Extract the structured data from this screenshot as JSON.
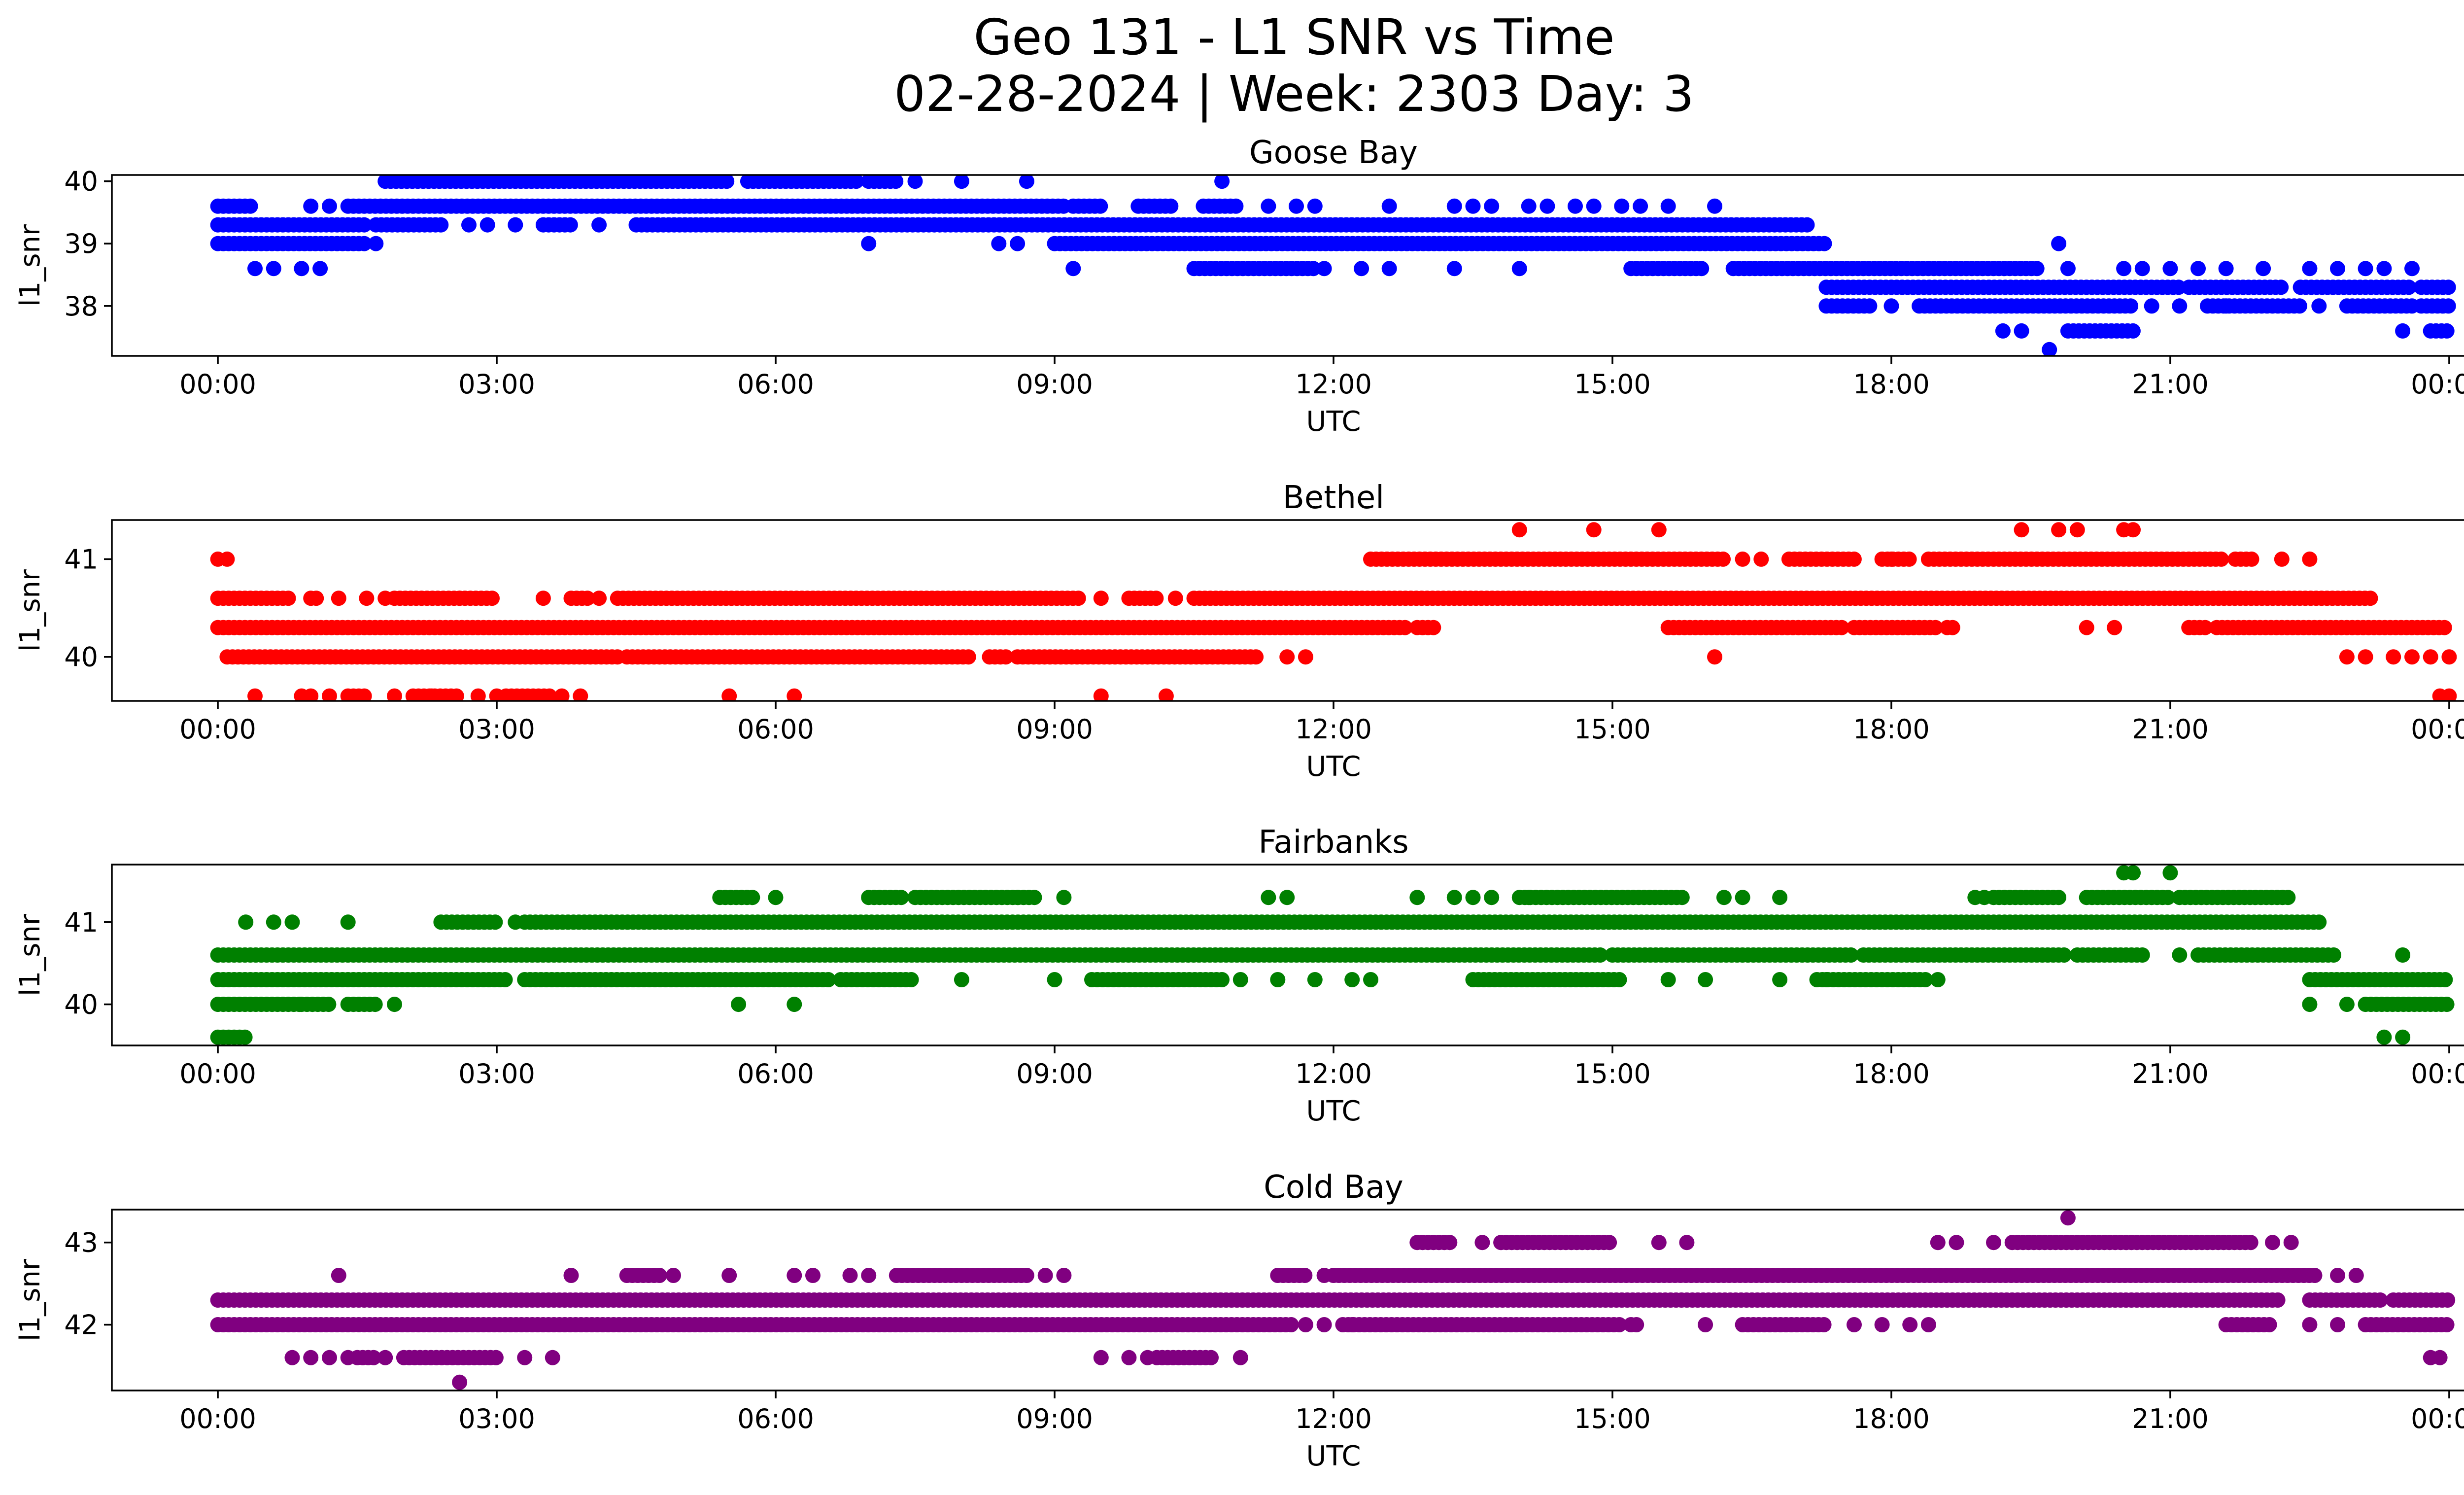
{
  "figure": {
    "title_line1": "Geo 131 - L1 SNR vs Time",
    "title_line2": "02-28-2024 | Week: 2303 Day: 3"
  },
  "chart_data": [
    {
      "type": "scatter",
      "title": "Goose Bay",
      "xlabel": "UTC",
      "ylabel": "l1_snr",
      "color": "#0000ff",
      "xlim_hours": [
        -1.14,
        25.14
      ],
      "ylim": [
        37.2,
        40.1
      ],
      "xticks": [
        "00:00",
        "03:00",
        "06:00",
        "09:00",
        "12:00",
        "15:00",
        "18:00",
        "21:00",
        "00:00"
      ],
      "yticks": [
        38,
        39,
        40
      ],
      "series": [
        {
          "values": [
            {
              "level": 40.0,
              "segments": [
                [
                  1.8,
                  5.5
                ],
                [
                  5.7,
                  6.9
                ],
                [
                  7.0,
                  7.3
                ]
              ],
              "singles": [
                7.5,
                8.0,
                8.7,
                10.8
              ]
            },
            {
              "level": 39.6,
              "segments": [
                [
                  0.0,
                  0.4
                ],
                [
                  1.4,
                  9.1
                ],
                [
                  9.2,
                  9.5
                ],
                [
                  9.9,
                  10.3
                ],
                [
                  10.6,
                  11.0
                ]
              ],
              "singles": [
                1.0,
                1.2,
                11.3,
                11.6,
                11.8,
                12.6,
                13.3,
                13.5,
                13.7,
                14.1,
                14.3,
                14.6,
                14.8,
                15.1,
                15.3,
                15.6,
                16.1
              ]
            },
            {
              "level": 39.3,
              "segments": [
                [
                  0.0,
                  1.6
                ],
                [
                  1.7,
                  2.4
                ],
                [
                  3.5,
                  3.8
                ],
                [
                  4.5,
                  17.1
                ]
              ],
              "singles": [
                2.7,
                2.9,
                3.2,
                4.1
              ]
            },
            {
              "level": 39.0,
              "segments": [
                [
                  0.0,
                  1.6
                ],
                [
                  9.0,
                  17.3
                ]
              ],
              "singles": [
                1.7,
                7.0,
                8.4,
                8.6
              ]
            },
            {
              "level": 38.6,
              "segments": [
                [
                  10.5,
                  11.8
                ],
                [
                  15.2,
                  16.0
                ],
                [
                  16.3,
                  19.6
                ]
              ],
              "singles": [
                0.4,
                0.6,
                0.9,
                1.1,
                9.2,
                11.9,
                12.3,
                12.6,
                13.3,
                14.0,
                19.9,
                20.5,
                20.7,
                21.0,
                21.3,
                21.6,
                22.0,
                22.5,
                22.8,
                23.1,
                23.3,
                23.6
              ]
            },
            {
              "level": 38.3,
              "segments": [
                [
                  17.3,
                  21.1
                ],
                [
                  21.2,
                  22.2
                ],
                [
                  22.4,
                  23.6
                ],
                [
                  23.7,
                  24.0
                ]
              ],
              "singles": []
            },
            {
              "level": 38.0,
              "segments": [
                [
                  17.3,
                  17.8
                ],
                [
                  18.3,
                  20.6
                ],
                [
                  21.4,
                  22.4
                ],
                [
                  22.9,
                  23.6
                ],
                [
                  23.7,
                  24.0
                ]
              ],
              "singles": [
                18.0,
                20.8,
                21.1,
                21.6,
                22.6
              ]
            },
            {
              "level": 37.6,
              "segments": [
                [
                  19.9,
                  20.6
                ],
                [
                  23.8,
                  24.0
                ]
              ],
              "singles": [
                19.2,
                19.4,
                23.5
              ]
            },
            {
              "level": 37.3,
              "segments": [],
              "singles": [
                19.7
              ]
            },
            {
              "level": 39.0,
              "segments": [],
              "singles": [
                19.8
              ]
            }
          ]
        }
      ]
    },
    {
      "type": "scatter",
      "title": "Bethel",
      "xlabel": "UTC",
      "ylabel": "l1_snr",
      "color": "#ff0000",
      "xlim_hours": [
        -1.14,
        25.14
      ],
      "ylim": [
        39.55,
        41.4
      ],
      "xticks": [
        "00:00",
        "03:00",
        "06:00",
        "09:00",
        "12:00",
        "15:00",
        "18:00",
        "21:00",
        "00:00"
      ],
      "yticks": [
        40,
        41
      ],
      "series": [
        {
          "values": [
            {
              "level": 41.3,
              "segments": [],
              "singles": [
                14.0,
                14.8,
                15.5,
                19.4,
                19.8,
                20.0,
                20.5,
                20.6
              ]
            },
            {
              "level": 41.0,
              "segments": [
                [
                  12.4,
                  16.2
                ],
                [
                  16.9,
                  17.6
                ],
                [
                  17.9,
                  18.2
                ],
                [
                  18.4,
                  21.6
                ],
                [
                  21.7,
                  21.9
                ]
              ],
              "singles": [
                0.0,
                0.1,
                16.4,
                16.6,
                18.0,
                22.2,
                22.5
              ]
            },
            {
              "level": 40.6,
              "segments": [
                [
                  0.0,
                  0.8
                ],
                [
                  1.0,
                  1.1
                ],
                [
                  1.9,
                  3.0
                ],
                [
                  3.8,
                  4.0
                ],
                [
                  4.3,
                  9.3
                ],
                [
                  9.8,
                  10.1
                ],
                [
                  10.5,
                  23.2
                ]
              ],
              "singles": [
                1.3,
                1.6,
                1.8,
                2.6,
                3.5,
                4.1,
                9.5,
                10.3
              ]
            },
            {
              "level": 40.3,
              "segments": [
                [
                  0.0,
                  12.8
                ],
                [
                  12.9,
                  13.1
                ],
                [
                  15.6,
                  17.5
                ],
                [
                  17.6,
                  18.5
                ],
                [
                  18.6,
                  18.7
                ],
                [
                  21.2,
                  21.4
                ],
                [
                  21.5,
                  24.0
                ]
              ],
              "singles": [
                20.1,
                20.4
              ]
            },
            {
              "level": 40.0,
              "segments": [
                [
                  0.1,
                  4.3
                ],
                [
                  4.4,
                  8.1
                ],
                [
                  8.3,
                  8.5
                ],
                [
                  8.6,
                  11.2
                ]
              ],
              "singles": [
                11.5,
                11.7,
                16.1,
                22.9,
                23.1,
                23.4,
                23.6,
                23.8,
                24.0
              ]
            },
            {
              "level": 39.6,
              "segments": [
                [
                  1.4,
                  1.6
                ],
                [
                  2.1,
                  2.6
                ],
                [
                  3.1,
                  3.6
                ]
              ],
              "singles": [
                0.4,
                0.9,
                1.0,
                1.2,
                1.9,
                2.3,
                2.8,
                3.0,
                3.7,
                3.9,
                5.5,
                6.2,
                9.5,
                10.2,
                23.9,
                24.0
              ]
            }
          ]
        }
      ]
    },
    {
      "type": "scatter",
      "title": "Fairbanks",
      "xlabel": "UTC",
      "ylabel": "l1_snr",
      "color": "#008000",
      "xlim_hours": [
        -1.14,
        25.14
      ],
      "ylim": [
        39.5,
        41.7
      ],
      "xticks": [
        "00:00",
        "03:00",
        "06:00",
        "09:00",
        "12:00",
        "15:00",
        "18:00",
        "21:00",
        "00:00"
      ],
      "yticks": [
        40,
        41
      ],
      "series": [
        {
          "values": [
            {
              "level": 41.6,
              "segments": [],
              "singles": [
                20.5,
                20.6,
                21.0
              ]
            },
            {
              "level": 41.3,
              "segments": [
                [
                  5.4,
                  5.8
                ],
                [
                  7.0,
                  7.4
                ],
                [
                  7.5,
                  8.8
                ],
                [
                  14.0,
                  15.8
                ],
                [
                  19.1,
                  19.8
                ],
                [
                  20.1,
                  21.0
                ],
                [
                  21.1,
                  22.3
                ]
              ],
              "singles": [
                6.0,
                8.6,
                9.1,
                11.3,
                11.5,
                12.9,
                13.3,
                13.5,
                13.7,
                14.1,
                16.2,
                16.4,
                16.8,
                18.9,
                19.0
              ]
            },
            {
              "level": 41.0,
              "segments": [
                [
                  2.4,
                  3.0
                ],
                [
                  3.3,
                  22.6
                ]
              ],
              "singles": [
                0.3,
                0.6,
                0.8,
                1.4,
                3.2
              ]
            },
            {
              "level": 40.6,
              "segments": [
                [
                  0.0,
                  14.9
                ],
                [
                  15.0,
                  17.6
                ],
                [
                  17.7,
                  19.9
                ],
                [
                  20.0,
                  20.7
                ],
                [
                  21.3,
                  22.8
                ]
              ],
              "singles": [
                21.1,
                23.5
              ]
            },
            {
              "level": 40.3,
              "segments": [
                [
                  0.0,
                  3.1
                ],
                [
                  3.3,
                  6.6
                ],
                [
                  6.7,
                  7.5
                ],
                [
                  9.4,
                  10.8
                ],
                [
                  13.5,
                  15.1
                ],
                [
                  17.2,
                  18.4
                ],
                [
                  22.5,
                  24.0
                ]
              ],
              "singles": [
                8.0,
                9.0,
                11.0,
                11.4,
                11.8,
                12.2,
                12.4,
                15.6,
                16.0,
                16.8,
                17.3,
                18.5
              ]
            },
            {
              "level": 40.0,
              "segments": [
                [
                  0.0,
                  0.9
                ],
                [
                  0.9,
                  1.2
                ],
                [
                  1.4,
                  1.7
                ],
                [
                  23.1,
                  24.0
                ]
              ],
              "singles": [
                5.6,
                6.2,
                1.9,
                22.5,
                22.9
              ]
            },
            {
              "level": 39.6,
              "segments": [
                [
                  0.0,
                  0.3
                ]
              ],
              "singles": [
                23.3,
                23.5
              ]
            }
          ]
        }
      ]
    },
    {
      "type": "scatter",
      "title": "Cold Bay",
      "xlabel": "UTC",
      "ylabel": "l1_snr",
      "color": "#800080",
      "xlim_hours": [
        -1.14,
        25.14
      ],
      "ylim": [
        41.2,
        43.4
      ],
      "xticks": [
        "00:00",
        "03:00",
        "06:00",
        "09:00",
        "12:00",
        "15:00",
        "18:00",
        "21:00",
        "00:00"
      ],
      "yticks": [
        42,
        43
      ],
      "series": [
        {
          "values": [
            {
              "level": 43.3,
              "segments": [],
              "singles": [
                19.9
              ]
            },
            {
              "level": 43.0,
              "segments": [
                [
                  12.9,
                  13.3
                ],
                [
                  13.8,
                  15.0
                ],
                [
                  19.3,
                  21.9
                ]
              ],
              "singles": [
                13.6,
                15.5,
                15.8,
                18.5,
                18.7,
                19.1,
                22.1,
                22.3
              ]
            },
            {
              "level": 42.6,
              "segments": [
                [
                  4.4,
                  4.8
                ],
                [
                  7.3,
                  8.7
                ],
                [
                  11.4,
                  11.7
                ],
                [
                  12.0,
                  22.6
                ]
              ],
              "singles": [
                1.3,
                3.8,
                4.9,
                5.5,
                6.2,
                6.4,
                6.8,
                7.0,
                8.9,
                9.1,
                11.9,
                22.8,
                23.0
              ]
            },
            {
              "level": 42.3,
              "segments": [
                [
                  0.0,
                  22.2
                ],
                [
                  22.5,
                  23.3
                ],
                [
                  23.4,
                  24.0
                ]
              ],
              "singles": []
            },
            {
              "level": 42.0,
              "segments": [
                [
                  0.0,
                  11.6
                ],
                [
                  12.1,
                  15.1
                ],
                [
                  15.2,
                  15.3
                ],
                [
                  16.4,
                  17.3
                ],
                [
                  21.6,
                  22.1
                ],
                [
                  23.1,
                  24.0
                ]
              ],
              "singles": [
                11.7,
                11.9,
                12.2,
                16.0,
                17.6,
                17.9,
                18.2,
                18.4,
                22.5,
                22.8
              ]
            },
            {
              "level": 41.6,
              "segments": [
                [
                  1.5,
                  1.7
                ],
                [
                  2.0,
                  3.0
                ],
                [
                  10.1,
                  10.7
                ]
              ],
              "singles": [
                0.8,
                1.0,
                1.2,
                1.4,
                1.8,
                3.3,
                3.6,
                9.5,
                9.8,
                10.0,
                11.0,
                23.8,
                23.9
              ]
            },
            {
              "level": 41.3,
              "segments": [],
              "singles": [
                2.6
              ]
            }
          ]
        }
      ]
    }
  ]
}
